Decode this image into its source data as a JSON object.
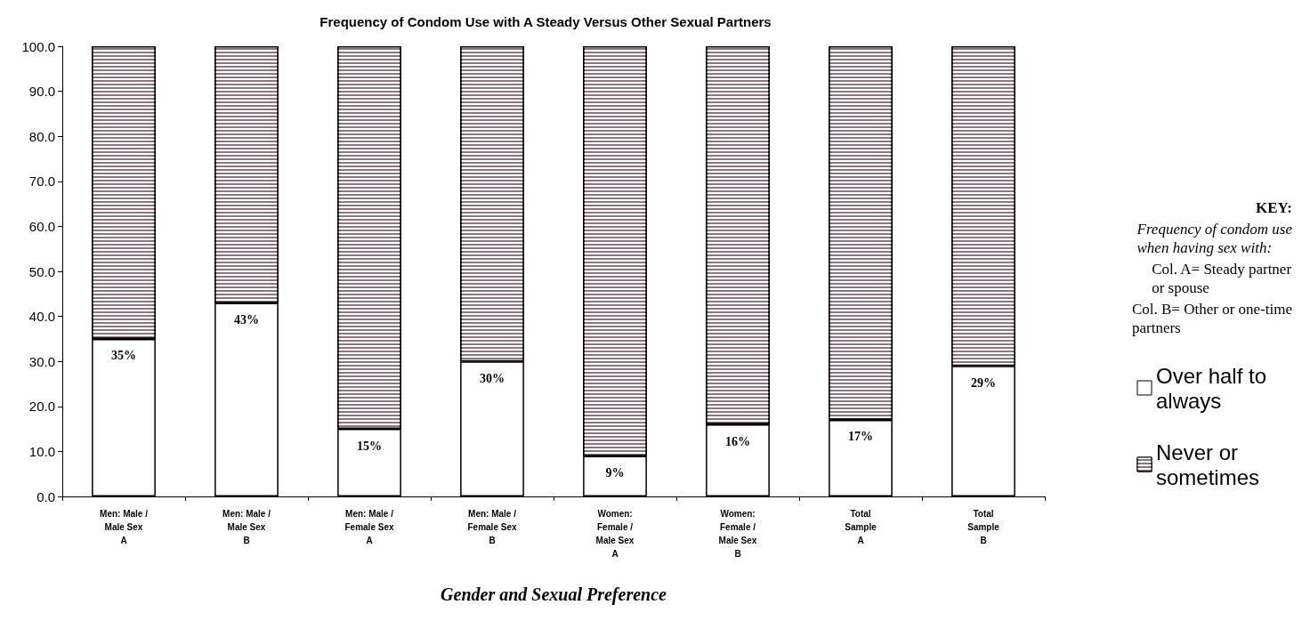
{
  "chart_data": {
    "type": "bar",
    "title": "Frequency of Condom Use with A Steady Versus Other Sexual Partners",
    "xlabel": "Gender and Sexual Preference",
    "categories": [
      "Men: Male /\nMale Sex\nA",
      "Men: Male /\nMale Sex\nB",
      "Men: Male /\nFemale Sex\nA",
      "Men: Male /\nFemale Sex\nB",
      "Women:\nFemale /\nMale Sex\nA",
      "Women:\nFemale /\nMale Sex\nB",
      "Total\nSample\nA",
      "Total\nSample\nB"
    ],
    "stacked": true,
    "series": [
      {
        "name": "Over half to always",
        "color": "#ffffff",
        "values": [
          35,
          43,
          15,
          30,
          9,
          16,
          17,
          29
        ],
        "value_labels": [
          "35%",
          "43%",
          "15%",
          "30%",
          "9%",
          "16%",
          "17%",
          "29%"
        ]
      },
      {
        "name": "Never or sometimes",
        "color": "#8c7480",
        "values": [
          65,
          57,
          85,
          70,
          91,
          84,
          83,
          71
        ]
      }
    ],
    "ylim": [
      0,
      100
    ],
    "yticks": [
      {
        "value": 0,
        "label": "0.0"
      },
      {
        "value": 10,
        "label": "10.0"
      },
      {
        "value": 20,
        "label": "20.0"
      },
      {
        "value": 30,
        "label": "30.0"
      },
      {
        "value": 40,
        "label": "40.0"
      },
      {
        "value": 50,
        "label": "50.0"
      },
      {
        "value": 60,
        "label": "60.0"
      },
      {
        "value": 70,
        "label": "70.0"
      },
      {
        "value": 80,
        "label": "80.0"
      },
      {
        "value": 90,
        "label": "90.0"
      },
      {
        "value": 100,
        "label": "100.0"
      }
    ],
    "grid": false,
    "legend": "right",
    "annotations": [
      "KEY:",
      "Frequency of condom use\nwhen having sex with:",
      "Col. A= Steady partner\nor spouse",
      "Col. B= Other or one-time\npartners"
    ]
  }
}
